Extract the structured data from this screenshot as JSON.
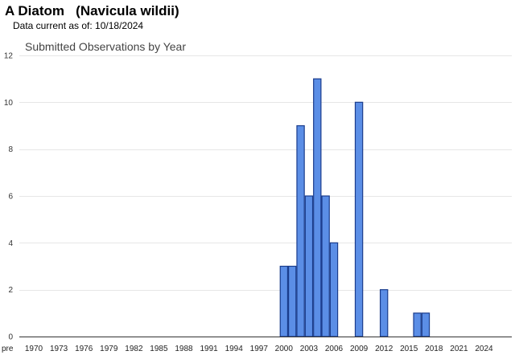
{
  "header": {
    "title": "A Diatom   (Navicula wildii)",
    "data_current": "Data current as of: 10/18/2024"
  },
  "colors": {
    "bar_fill": "#5b8ee6",
    "bar_stroke": "#1a3c8c",
    "grid": "#e6e6e6",
    "axis": "#333333"
  },
  "chart_data": {
    "type": "bar",
    "title": "Submitted Observations by Year",
    "xlabel": "",
    "ylabel": "",
    "ylim": [
      0,
      12
    ],
    "yticks": [
      0,
      2,
      4,
      6,
      8,
      10,
      12
    ],
    "grid": true,
    "legend": "none",
    "x_tick_labels": [
      "pre",
      "1970",
      "1973",
      "1976",
      "1979",
      "1982",
      "1985",
      "1988",
      "1991",
      "1994",
      "1997",
      "2000",
      "2003",
      "2006",
      "2009",
      "2012",
      "2015",
      "2018",
      "2021",
      "2024"
    ],
    "categories": [
      "pre",
      "1970",
      "1971",
      "1972",
      "1973",
      "1974",
      "1975",
      "1976",
      "1977",
      "1978",
      "1979",
      "1980",
      "1981",
      "1982",
      "1983",
      "1984",
      "1985",
      "1986",
      "1987",
      "1988",
      "1989",
      "1990",
      "1991",
      "1992",
      "1993",
      "1994",
      "1995",
      "1996",
      "1997",
      "1998",
      "1999",
      "2000",
      "2001",
      "2002",
      "2003",
      "2004",
      "2005",
      "2006",
      "2007",
      "2008",
      "2009",
      "2010",
      "2011",
      "2012",
      "2013",
      "2014",
      "2015",
      "2016",
      "2017",
      "2018",
      "2019",
      "2020",
      "2021",
      "2022",
      "2023",
      "2024"
    ],
    "values": [
      0,
      0,
      0,
      0,
      0,
      0,
      0,
      0,
      0,
      0,
      0,
      0,
      0,
      0,
      0,
      0,
      0,
      0,
      0,
      0,
      0,
      0,
      0,
      0,
      0,
      0,
      0,
      0,
      0,
      0,
      0,
      3,
      3,
      9,
      6,
      11,
      6,
      4,
      0,
      0,
      10,
      0,
      0,
      2,
      0,
      0,
      0,
      1,
      1,
      0,
      0,
      0,
      0,
      0,
      0,
      0
    ]
  }
}
